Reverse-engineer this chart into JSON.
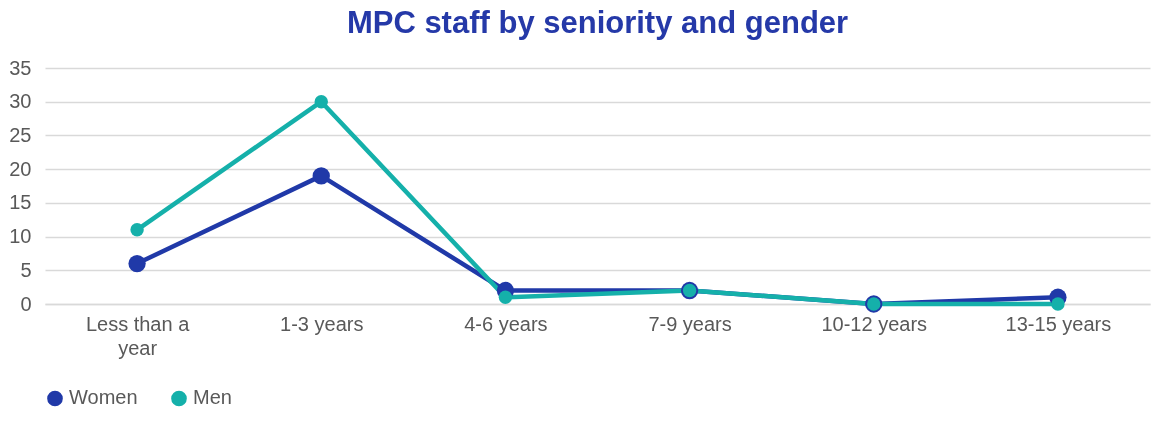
{
  "chart_data": {
    "type": "line",
    "title": "MPC staff by seniority and gender",
    "categories": [
      "Less than a year",
      "1-3 years",
      "4-6 years",
      "7-9 years",
      "10-12 years",
      "13-15 years"
    ],
    "series": [
      {
        "name": "Women",
        "color": "#2039a8",
        "values": [
          6,
          19,
          2,
          2,
          0,
          1
        ]
      },
      {
        "name": "Men",
        "color": "#15b0aa",
        "values": [
          11,
          30,
          1,
          2,
          0,
          0
        ]
      }
    ],
    "ylim": [
      0,
      35
    ],
    "yticks": [
      0,
      5,
      10,
      15,
      20,
      25,
      30,
      35
    ],
    "grid": "y",
    "legend": "bottom",
    "marker": "circle",
    "line_style": "solid"
  }
}
